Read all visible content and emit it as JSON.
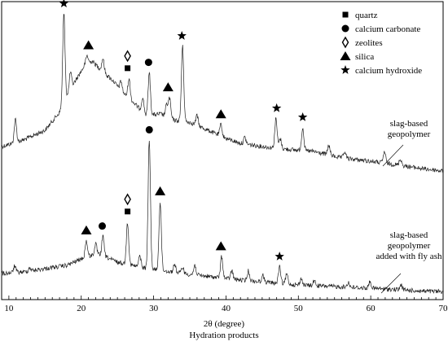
{
  "chart_data": {
    "type": "line",
    "xlabel": "2θ (degree)",
    "caption": "Hydration products",
    "xlim": [
      9,
      70
    ],
    "xticks": [
      10,
      20,
      30,
      40,
      50,
      60,
      70
    ],
    "yticks_shown": false,
    "legend": {
      "position": "top-right",
      "entries": [
        {
          "symbol": "square",
          "label": "quartz"
        },
        {
          "symbol": "circle",
          "label": "calcium carbonate"
        },
        {
          "symbol": "diamond",
          "label": "zeolites"
        },
        {
          "symbol": "triangle",
          "label": "silica"
        },
        {
          "symbol": "star",
          "label": "calcium hydroxide"
        }
      ]
    },
    "series": [
      {
        "name": "slag-based geopolymer",
        "label_lines": [
          "slag-based",
          "geopolymer"
        ],
        "baseline": [
          [
            9,
            180
          ],
          [
            12,
            172
          ],
          [
            15,
            160
          ],
          [
            17,
            138
          ],
          [
            19,
            102
          ],
          [
            20.5,
            80
          ],
          [
            21.5,
            75
          ],
          [
            23,
            88
          ],
          [
            24.5,
            100
          ],
          [
            25.5,
            112
          ],
          [
            27,
            124
          ],
          [
            29,
            142
          ],
          [
            31,
            140
          ],
          [
            33,
            148
          ],
          [
            35,
            150
          ],
          [
            38,
            162
          ],
          [
            40,
            170
          ],
          [
            42,
            176
          ],
          [
            45,
            180
          ],
          [
            48,
            183
          ],
          [
            52,
            186
          ],
          [
            56,
            194
          ],
          [
            60,
            198
          ],
          [
            64,
            203
          ],
          [
            67,
            207
          ],
          [
            70,
            210
          ]
        ],
        "peaks": [
          [
            10.9,
            28
          ],
          [
            17.6,
            110
          ],
          [
            18.5,
            22
          ],
          [
            20.8,
            10
          ],
          [
            23.0,
            16
          ],
          [
            25.5,
            12
          ],
          [
            26.6,
            24
          ],
          [
            28.5,
            18
          ],
          [
            29.4,
            52
          ],
          [
            31.8,
            14
          ],
          [
            32.2,
            24
          ],
          [
            34.0,
            92
          ],
          [
            36.0,
            12
          ],
          [
            39.3,
            14
          ],
          [
            42.6,
            8
          ],
          [
            46.9,
            36
          ],
          [
            47.5,
            12
          ],
          [
            50.6,
            28
          ],
          [
            54.2,
            12
          ],
          [
            56.4,
            8
          ],
          [
            61.9,
            14
          ],
          [
            64.1,
            8
          ]
        ],
        "markers": [
          {
            "symbol": "star",
            "x": 17.6
          },
          {
            "symbol": "triangle",
            "x": 21.0
          },
          {
            "symbol": "square",
            "x": 26.4
          },
          {
            "symbol": "diamond",
            "x": 26.4
          },
          {
            "symbol": "circle",
            "x": 29.3
          },
          {
            "symbol": "triangle",
            "x": 32.0
          },
          {
            "symbol": "star",
            "x": 33.9
          },
          {
            "symbol": "triangle",
            "x": 39.3
          },
          {
            "symbol": "star",
            "x": 47.0
          },
          {
            "symbol": "star",
            "x": 50.6
          }
        ]
      },
      {
        "name": "slag-based geopolymer added with fly ash",
        "label_lines": [
          "slag-based",
          "geopolymer",
          "added with fly ash"
        ],
        "baseline": [
          [
            9,
            336
          ],
          [
            12,
            334
          ],
          [
            15,
            330
          ],
          [
            18,
            326
          ],
          [
            20,
            318
          ],
          [
            22,
            312
          ],
          [
            23.5,
            316
          ],
          [
            25,
            322
          ],
          [
            27,
            326
          ],
          [
            29,
            330
          ],
          [
            31,
            332
          ],
          [
            34,
            336
          ],
          [
            38,
            340
          ],
          [
            42,
            344
          ],
          [
            46,
            347
          ],
          [
            50,
            350
          ],
          [
            55,
            352
          ],
          [
            60,
            354
          ],
          [
            64,
            356
          ],
          [
            68,
            358
          ],
          [
            70,
            358
          ]
        ],
        "peaks": [
          [
            10.8,
            8
          ],
          [
            12.9,
            4
          ],
          [
            20.7,
            20
          ],
          [
            22.0,
            12
          ],
          [
            23.0,
            24
          ],
          [
            26.4,
            52
          ],
          [
            28.1,
            14
          ],
          [
            29.4,
            158
          ],
          [
            30.9,
            84
          ],
          [
            32.9,
            10
          ],
          [
            34.0,
            8
          ],
          [
            35.7,
            12
          ],
          [
            39.4,
            26
          ],
          [
            40.8,
            10
          ],
          [
            43.1,
            12
          ],
          [
            45.1,
            8
          ],
          [
            47.4,
            20
          ],
          [
            48.4,
            12
          ],
          [
            50.4,
            8
          ],
          [
            52.2,
            6
          ],
          [
            56.9,
            6
          ],
          [
            59.9,
            8
          ],
          [
            64.2,
            6
          ]
        ],
        "markers": [
          {
            "symbol": "triangle",
            "x": 20.7
          },
          {
            "symbol": "circle",
            "x": 22.9
          },
          {
            "symbol": "square",
            "x": 26.4
          },
          {
            "symbol": "diamond",
            "x": 26.4
          },
          {
            "symbol": "circle",
            "x": 29.4
          },
          {
            "symbol": "triangle",
            "x": 30.9
          },
          {
            "symbol": "triangle",
            "x": 39.3
          },
          {
            "symbol": "star",
            "x": 47.4
          }
        ]
      }
    ]
  }
}
